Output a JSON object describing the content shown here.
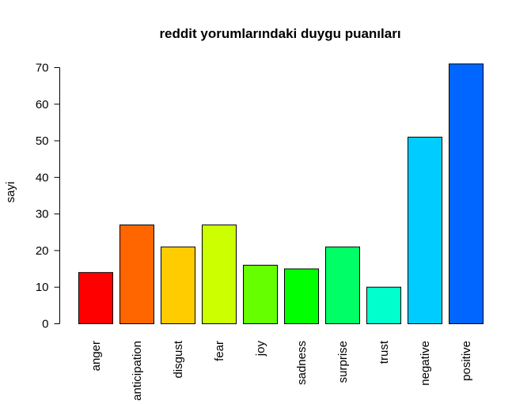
{
  "chart_data": {
    "type": "bar",
    "title": "reddit yorumlarındaki duygu puanıları",
    "xlabel": "",
    "ylabel": "sayi",
    "categories": [
      "anger",
      "anticipation",
      "disgust",
      "fear",
      "joy",
      "sadness",
      "surprise",
      "trust",
      "negative",
      "positive"
    ],
    "values": [
      14,
      27,
      21,
      27,
      16,
      15,
      21,
      10,
      51,
      71
    ],
    "colors": [
      "#FF0000",
      "#FF6600",
      "#FFCC00",
      "#CCFF00",
      "#66FF00",
      "#00FF00",
      "#00FF66",
      "#00FFCC",
      "#00CCFF",
      "#0066FF"
    ],
    "ylim": [
      0,
      71
    ],
    "yticks": [
      0,
      10,
      20,
      30,
      40,
      50,
      60,
      70
    ],
    "grid": false,
    "legend": "none"
  }
}
